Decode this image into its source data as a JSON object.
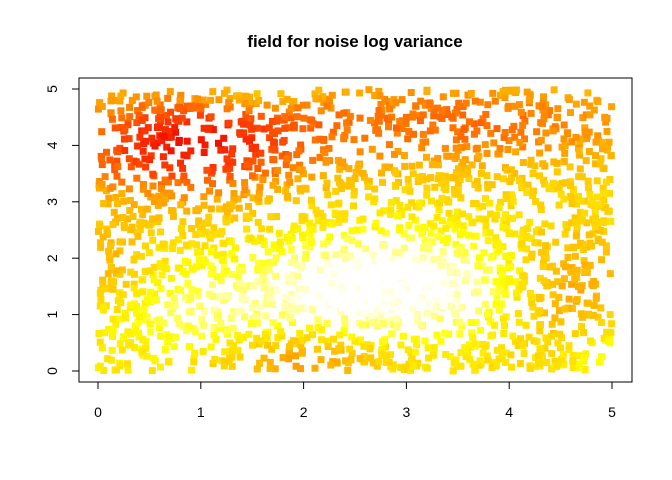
{
  "chart_data": {
    "type": "scatter",
    "title": "field for noise log variance",
    "xlabel": "",
    "ylabel": "",
    "xlim": [
      0,
      5
    ],
    "ylim": [
      0,
      5
    ],
    "x_ticks": [
      "0",
      "1",
      "2",
      "3",
      "4",
      "5"
    ],
    "y_ticks": [
      "0",
      "1",
      "2",
      "3",
      "4",
      "5"
    ],
    "marker": "filled-square",
    "palette": "heat colors (red = high, white = low)",
    "colors": {
      "high": "#ff0000",
      "mid_high": "#ff8000",
      "mid_low": "#ffcc00",
      "low": "#ffff00",
      "lowest": "#ffffff"
    },
    "grid": false,
    "legend": "none"
  }
}
